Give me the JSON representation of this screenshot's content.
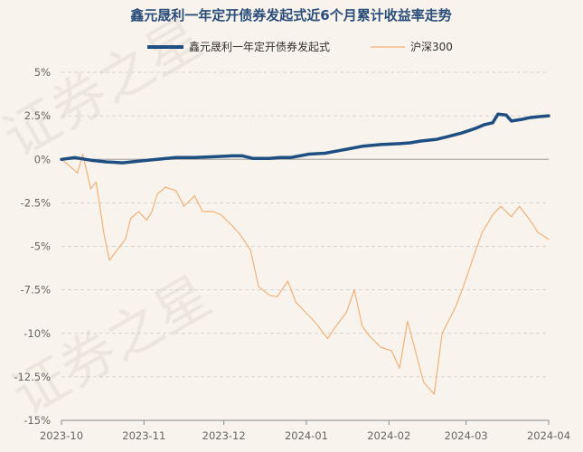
{
  "chart_data": {
    "type": "line",
    "title": "鑫元晟利一年定开债券发起式近6个月累计收益率走势",
    "legend_position": "top",
    "grid": "horizontal-dashed",
    "ylim": [
      -15,
      5
    ],
    "y_ticks": [
      "5%",
      "2.5%",
      "0%",
      "-2.5%",
      "-5%",
      "-7.5%",
      "-10%",
      "-12.5%",
      "-15%"
    ],
    "x_ticks": [
      "2023-10",
      "2023-11",
      "2023-12",
      "2024-01",
      "2024-02",
      "2024-03",
      "2024-04"
    ],
    "x_range": [
      "2023-10-01",
      "2024-04-01"
    ],
    "colors": {
      "fund": "#1f4e82",
      "index": "#f0b27a",
      "zero_line": "#aaaaaa",
      "grid": "#cccccc"
    },
    "watermark": [
      "证券之星",
      "证券之星"
    ],
    "series": [
      {
        "name": "鑫元晟利一年定开债券发起式",
        "points": [
          [
            "2023-10-01",
            0.0
          ],
          [
            "2023-10-06",
            0.1
          ],
          [
            "2023-10-12",
            -0.05
          ],
          [
            "2023-10-18",
            -0.15
          ],
          [
            "2023-10-24",
            -0.2
          ],
          [
            "2023-10-30",
            -0.1
          ],
          [
            "2023-11-06",
            0.0
          ],
          [
            "2023-11-13",
            0.1
          ],
          [
            "2023-11-20",
            0.1
          ],
          [
            "2023-11-27",
            0.15
          ],
          [
            "2023-12-04",
            0.2
          ],
          [
            "2023-12-08",
            0.2
          ],
          [
            "2023-12-12",
            0.05
          ],
          [
            "2023-12-18",
            0.05
          ],
          [
            "2023-12-22",
            0.1
          ],
          [
            "2023-12-26",
            0.1
          ],
          [
            "2024-01-02",
            0.3
          ],
          [
            "2024-01-08",
            0.35
          ],
          [
            "2024-01-15",
            0.55
          ],
          [
            "2024-01-22",
            0.75
          ],
          [
            "2024-01-29",
            0.85
          ],
          [
            "2024-02-05",
            0.9
          ],
          [
            "2024-02-09",
            0.95
          ],
          [
            "2024-02-13",
            1.05
          ],
          [
            "2024-02-19",
            1.15
          ],
          [
            "2024-02-23",
            1.3
          ],
          [
            "2024-02-28",
            1.5
          ],
          [
            "2024-03-04",
            1.75
          ],
          [
            "2024-03-08",
            2.0
          ],
          [
            "2024-03-11",
            2.1
          ],
          [
            "2024-03-13",
            2.6
          ],
          [
            "2024-03-16",
            2.55
          ],
          [
            "2024-03-18",
            2.2
          ],
          [
            "2024-03-22",
            2.3
          ],
          [
            "2024-03-25",
            2.4
          ],
          [
            "2024-03-28",
            2.45
          ],
          [
            "2024-04-01",
            2.5
          ]
        ]
      },
      {
        "name": "沪深300",
        "points": [
          [
            "2023-10-01",
            0.0
          ],
          [
            "2023-10-05",
            -0.5
          ],
          [
            "2023-10-07",
            -0.8
          ],
          [
            "2023-10-09",
            0.3
          ],
          [
            "2023-10-12",
            -1.7
          ],
          [
            "2023-10-14",
            -1.3
          ],
          [
            "2023-10-17",
            -4.3
          ],
          [
            "2023-10-19",
            -5.8
          ],
          [
            "2023-10-23",
            -5.0
          ],
          [
            "2023-10-25",
            -4.6
          ],
          [
            "2023-10-27",
            -3.4
          ],
          [
            "2023-10-30",
            -3.0
          ],
          [
            "2023-11-02",
            -3.5
          ],
          [
            "2023-11-04",
            -3.0
          ],
          [
            "2023-11-06",
            -2.0
          ],
          [
            "2023-11-09",
            -1.6
          ],
          [
            "2023-11-13",
            -1.8
          ],
          [
            "2023-11-16",
            -2.7
          ],
          [
            "2023-11-20",
            -2.1
          ],
          [
            "2023-11-23",
            -3.0
          ],
          [
            "2023-11-27",
            -3.0
          ],
          [
            "2023-11-30",
            -3.2
          ],
          [
            "2023-12-04",
            -3.8
          ],
          [
            "2023-12-07",
            -4.3
          ],
          [
            "2023-12-11",
            -5.2
          ],
          [
            "2023-12-14",
            -7.3
          ],
          [
            "2023-12-18",
            -7.8
          ],
          [
            "2023-12-21",
            -7.9
          ],
          [
            "2023-12-25",
            -7.0
          ],
          [
            "2023-12-28",
            -8.2
          ],
          [
            "2024-01-02",
            -9.0
          ],
          [
            "2024-01-05",
            -9.5
          ],
          [
            "2024-01-09",
            -10.3
          ],
          [
            "2024-01-12",
            -9.6
          ],
          [
            "2024-01-16",
            -8.8
          ],
          [
            "2024-01-19",
            -7.5
          ],
          [
            "2024-01-22",
            -9.6
          ],
          [
            "2024-01-25",
            -10.2
          ],
          [
            "2024-01-29",
            -10.8
          ],
          [
            "2024-02-02",
            -11.0
          ],
          [
            "2024-02-05",
            -12.0
          ],
          [
            "2024-02-08",
            -9.3
          ],
          [
            "2024-02-14",
            -12.8
          ],
          [
            "2024-02-18",
            -13.5
          ],
          [
            "2024-02-21",
            -10.0
          ],
          [
            "2024-02-26",
            -8.5
          ],
          [
            "2024-02-29",
            -7.3
          ],
          [
            "2024-03-04",
            -5.5
          ],
          [
            "2024-03-07",
            -4.2
          ],
          [
            "2024-03-11",
            -3.2
          ],
          [
            "2024-03-14",
            -2.7
          ],
          [
            "2024-03-18",
            -3.3
          ],
          [
            "2024-03-21",
            -2.7
          ],
          [
            "2024-03-25",
            -3.5
          ],
          [
            "2024-03-28",
            -4.2
          ],
          [
            "2024-04-01",
            -4.6
          ]
        ]
      }
    ]
  }
}
